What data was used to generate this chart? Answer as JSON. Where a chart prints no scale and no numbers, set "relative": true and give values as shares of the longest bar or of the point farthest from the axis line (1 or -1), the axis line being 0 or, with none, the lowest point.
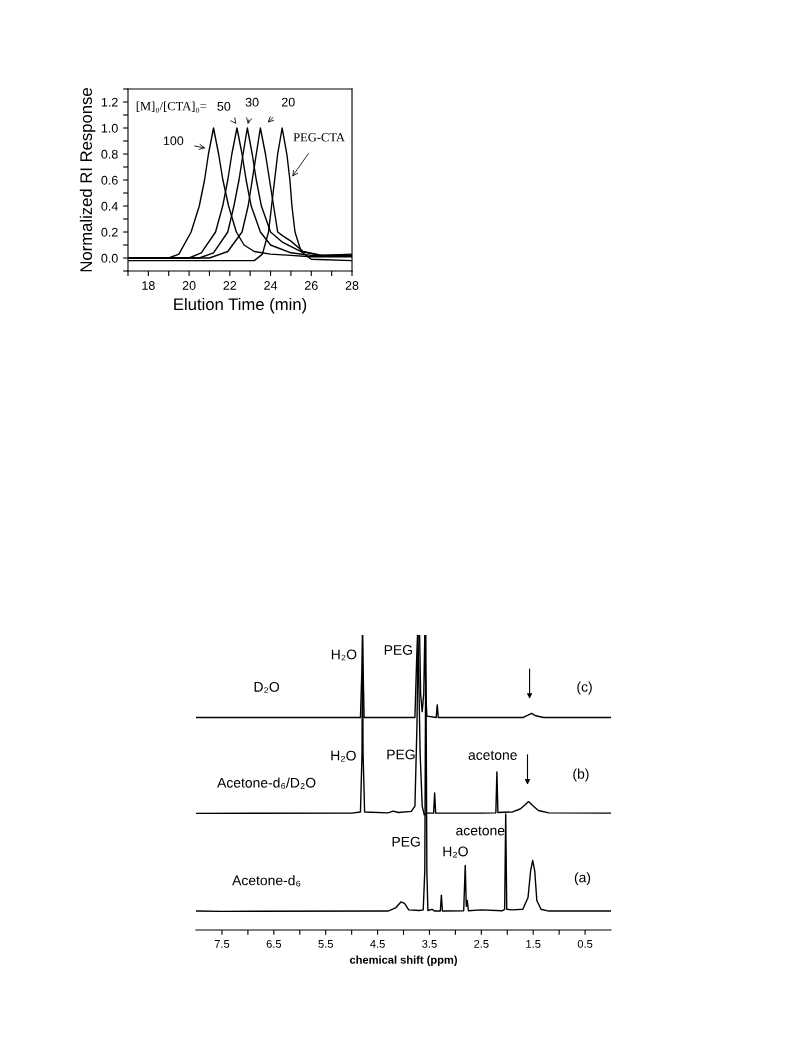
{
  "chart_data": [
    {
      "type": "line",
      "xlabel": "Elution Time (min)",
      "ylabel": "Normalized RI Response",
      "xlim": [
        17,
        28
      ],
      "ylim": [
        -0.1,
        1.3
      ],
      "xticks": [
        {
          "value": 17,
          "label": null
        },
        18,
        {
          "value": 19,
          "label": null
        },
        20,
        {
          "value": 21,
          "label": null
        },
        22,
        {
          "value": 23,
          "label": null
        },
        24,
        {
          "value": 25,
          "label": null
        },
        26,
        {
          "value": 27,
          "label": null
        },
        28
      ],
      "yticks": [
        {
          "value": -0.1,
          "label": null
        },
        {
          "value": 0,
          "label": "0.0"
        },
        {
          "value": 0.1,
          "label": null
        },
        0.2,
        {
          "value": 0.3,
          "label": null
        },
        0.4,
        {
          "value": 0.5,
          "label": null
        },
        0.6,
        {
          "value": 0.7,
          "label": null
        },
        0.8,
        {
          "value": 0.9,
          "label": null
        },
        {
          "value": 1.0,
          "label": "1.0"
        },
        {
          "value": 1.1,
          "label": null
        },
        1.2,
        {
          "value": 1.3,
          "label": null
        }
      ],
      "grid": false,
      "legend": false,
      "marker": "none",
      "line_style": "solid",
      "series": [
        {
          "color": "#000000",
          "x": [
            17,
            19,
            19.5,
            20.1,
            20.5,
            20.76,
            20.95,
            21.2,
            21.45,
            21.66,
            21.94,
            22.32,
            22.7,
            23.2,
            24,
            25,
            26,
            28
          ],
          "values": [
            0.0,
            0.0,
            0.03,
            0.2,
            0.4,
            0.6,
            0.8,
            1.0,
            0.8,
            0.6,
            0.4,
            0.2,
            0.1,
            0.05,
            0.03,
            0.02,
            0.01,
            0.01
          ]
        },
        {
          "color": "#000000",
          "x": [
            17,
            20,
            20.6,
            21.3,
            21.65,
            21.9,
            22.1,
            22.35,
            22.6,
            22.8,
            23.05,
            23.5,
            24.0,
            25.0,
            26.0,
            28
          ],
          "values": [
            0.0,
            0.0,
            0.04,
            0.2,
            0.4,
            0.6,
            0.8,
            1.0,
            0.8,
            0.6,
            0.4,
            0.2,
            0.1,
            0.04,
            0.02,
            0.02
          ]
        },
        {
          "color": "#000000",
          "x": [
            17,
            20.5,
            21.2,
            21.9,
            22.2,
            22.45,
            22.65,
            22.86,
            23.1,
            23.3,
            23.55,
            24.0,
            24.6,
            25.5,
            26.5,
            28
          ],
          "values": [
            0.0,
            0.0,
            0.04,
            0.2,
            0.4,
            0.6,
            0.8,
            1.0,
            0.8,
            0.6,
            0.4,
            0.2,
            0.12,
            0.05,
            0.02,
            0.02
          ]
        },
        {
          "color": "#000000",
          "x": [
            17,
            21.0,
            21.9,
            22.6,
            22.9,
            23.1,
            23.3,
            23.5,
            23.75,
            23.95,
            24.15,
            24.35,
            24.6,
            25.0,
            25.6,
            26.5,
            28
          ],
          "values": [
            0.0,
            0.0,
            0.05,
            0.2,
            0.4,
            0.6,
            0.8,
            1.0,
            0.8,
            0.6,
            0.4,
            0.2,
            0.17,
            0.13,
            0.05,
            0.02,
            0.03
          ]
        },
        {
          "color": "#000000",
          "x": [
            17,
            23.2,
            23.6,
            23.9,
            24.05,
            24.2,
            24.35,
            24.57,
            24.8,
            24.95,
            25.05,
            25.2,
            25.5,
            26.0,
            28
          ],
          "values": [
            -0.02,
            -0.02,
            0.03,
            0.2,
            0.4,
            0.6,
            0.8,
            1.0,
            0.8,
            0.6,
            0.4,
            0.2,
            0.05,
            -0.01,
            -0.02
          ]
        }
      ],
      "annotations": [
        "[M]₀/[CTA]₀=",
        {
          "text": "100",
          "x": 21.0,
          "y": 0.84
        },
        {
          "text": "50",
          "x": 22.32,
          "y": 1.03
        },
        {
          "text": "30",
          "x": 22.89,
          "y": 1.03
        },
        {
          "text": "20",
          "x": 23.71,
          "y": 1.02
        },
        {
          "text": "PEG-CTA",
          "x": 24.95,
          "y": 0.6
        }
      ]
    },
    {
      "type": "line",
      "relative": true,
      "xlabel": "chemical shift (ppm)",
      "xlim": [
        8.0,
        0.0
      ],
      "xticks": [
        7.5,
        {
          "value": 7.0,
          "label": null
        },
        6.5,
        {
          "value": 6.0,
          "label": null
        },
        5.5,
        {
          "value": 5.0,
          "label": null
        },
        4.5,
        {
          "value": 4.0,
          "label": null
        },
        3.5,
        {
          "value": 3.0,
          "label": null
        },
        2.5,
        {
          "value": 2.0,
          "label": null
        },
        1.5,
        {
          "value": 1.0,
          "label": null
        },
        0.5
      ],
      "tick_labels": "x",
      "grid": false,
      "legend": false,
      "marker": "none",
      "line_style": "solid",
      "series": [
        {
          "name": "D₂O",
          "color": "#000000",
          "x": [
            8.0,
            4.83,
            4.8,
            4.79,
            4.78,
            4.76,
            3.78,
            3.75,
            3.73,
            3.69,
            3.67,
            3.64,
            3.61,
            3.59,
            3.57,
            3.55,
            3.37,
            3.35,
            3.33,
            1.7,
            1.6,
            1.53,
            1.45,
            1.3,
            0.0
          ],
          "values": [
            0.72,
            0.72,
            0.9,
            1.0,
            0.9,
            0.72,
            0.72,
            0.9,
            1.0,
            1.0,
            0.8,
            0.74,
            0.8,
            1.0,
            0.8,
            0.725,
            0.72,
            0.763,
            0.72,
            0.72,
            0.728,
            0.734,
            0.726,
            0.72,
            0.72
          ]
        },
        {
          "name": "Acetone-d₆/D₂O",
          "color": "#000000",
          "x": [
            8.0,
            5.0,
            4.83,
            4.8,
            4.79,
            4.78,
            4.75,
            4.3,
            4.2,
            4.1,
            3.85,
            3.78,
            3.74,
            3.72,
            3.68,
            3.64,
            3.6,
            3.56,
            3.42,
            3.4,
            3.38,
            2.5,
            2.22,
            2.2,
            2.18,
            1.9,
            1.75,
            1.65,
            1.59,
            1.5,
            1.4,
            1.2,
            0.0
          ],
          "values": [
            0.395,
            0.396,
            0.4,
            0.6,
            1.0,
            0.6,
            0.4,
            0.397,
            0.403,
            0.398,
            0.402,
            0.42,
            0.7,
            1.0,
            0.6,
            0.42,
            0.39,
            0.396,
            0.396,
            0.464,
            0.396,
            0.396,
            0.397,
            0.536,
            0.398,
            0.4,
            0.41,
            0.425,
            0.435,
            0.42,
            0.405,
            0.397,
            0.396
          ]
        },
        {
          "name": "Acetone-d₆",
          "color": "#000000",
          "x": [
            8.0,
            7.5,
            4.3,
            4.15,
            4.05,
            3.98,
            3.9,
            3.7,
            3.62,
            3.59,
            3.57,
            3.55,
            3.53,
            3.45,
            3.4,
            3.29,
            3.27,
            3.25,
            2.84,
            2.81,
            2.79,
            2.77,
            2.75,
            2.5,
            2.1,
            2.05,
            2.03,
            2.01,
            1.9,
            1.7,
            1.6,
            1.55,
            1.51,
            1.47,
            1.43,
            1.35,
            1.2,
            0.0
          ],
          "values": [
            0.064,
            0.063,
            0.064,
            0.075,
            0.095,
            0.09,
            0.068,
            0.066,
            0.068,
            0.2,
            1.0,
            0.2,
            0.066,
            0.07,
            0.064,
            0.064,
            0.118,
            0.064,
            0.065,
            0.219,
            0.08,
            0.1,
            0.065,
            0.068,
            0.065,
            0.07,
            0.393,
            0.07,
            0.068,
            0.07,
            0.11,
            0.2,
            0.236,
            0.2,
            0.1,
            0.07,
            0.064,
            0.064
          ]
        }
      ],
      "annotations": [
        "H₂O",
        "PEG",
        "(c)",
        "H₂O",
        "PEG",
        "acetone",
        "(b)",
        "PEG",
        "acetone",
        "H₂O",
        "(a)"
      ]
    }
  ]
}
